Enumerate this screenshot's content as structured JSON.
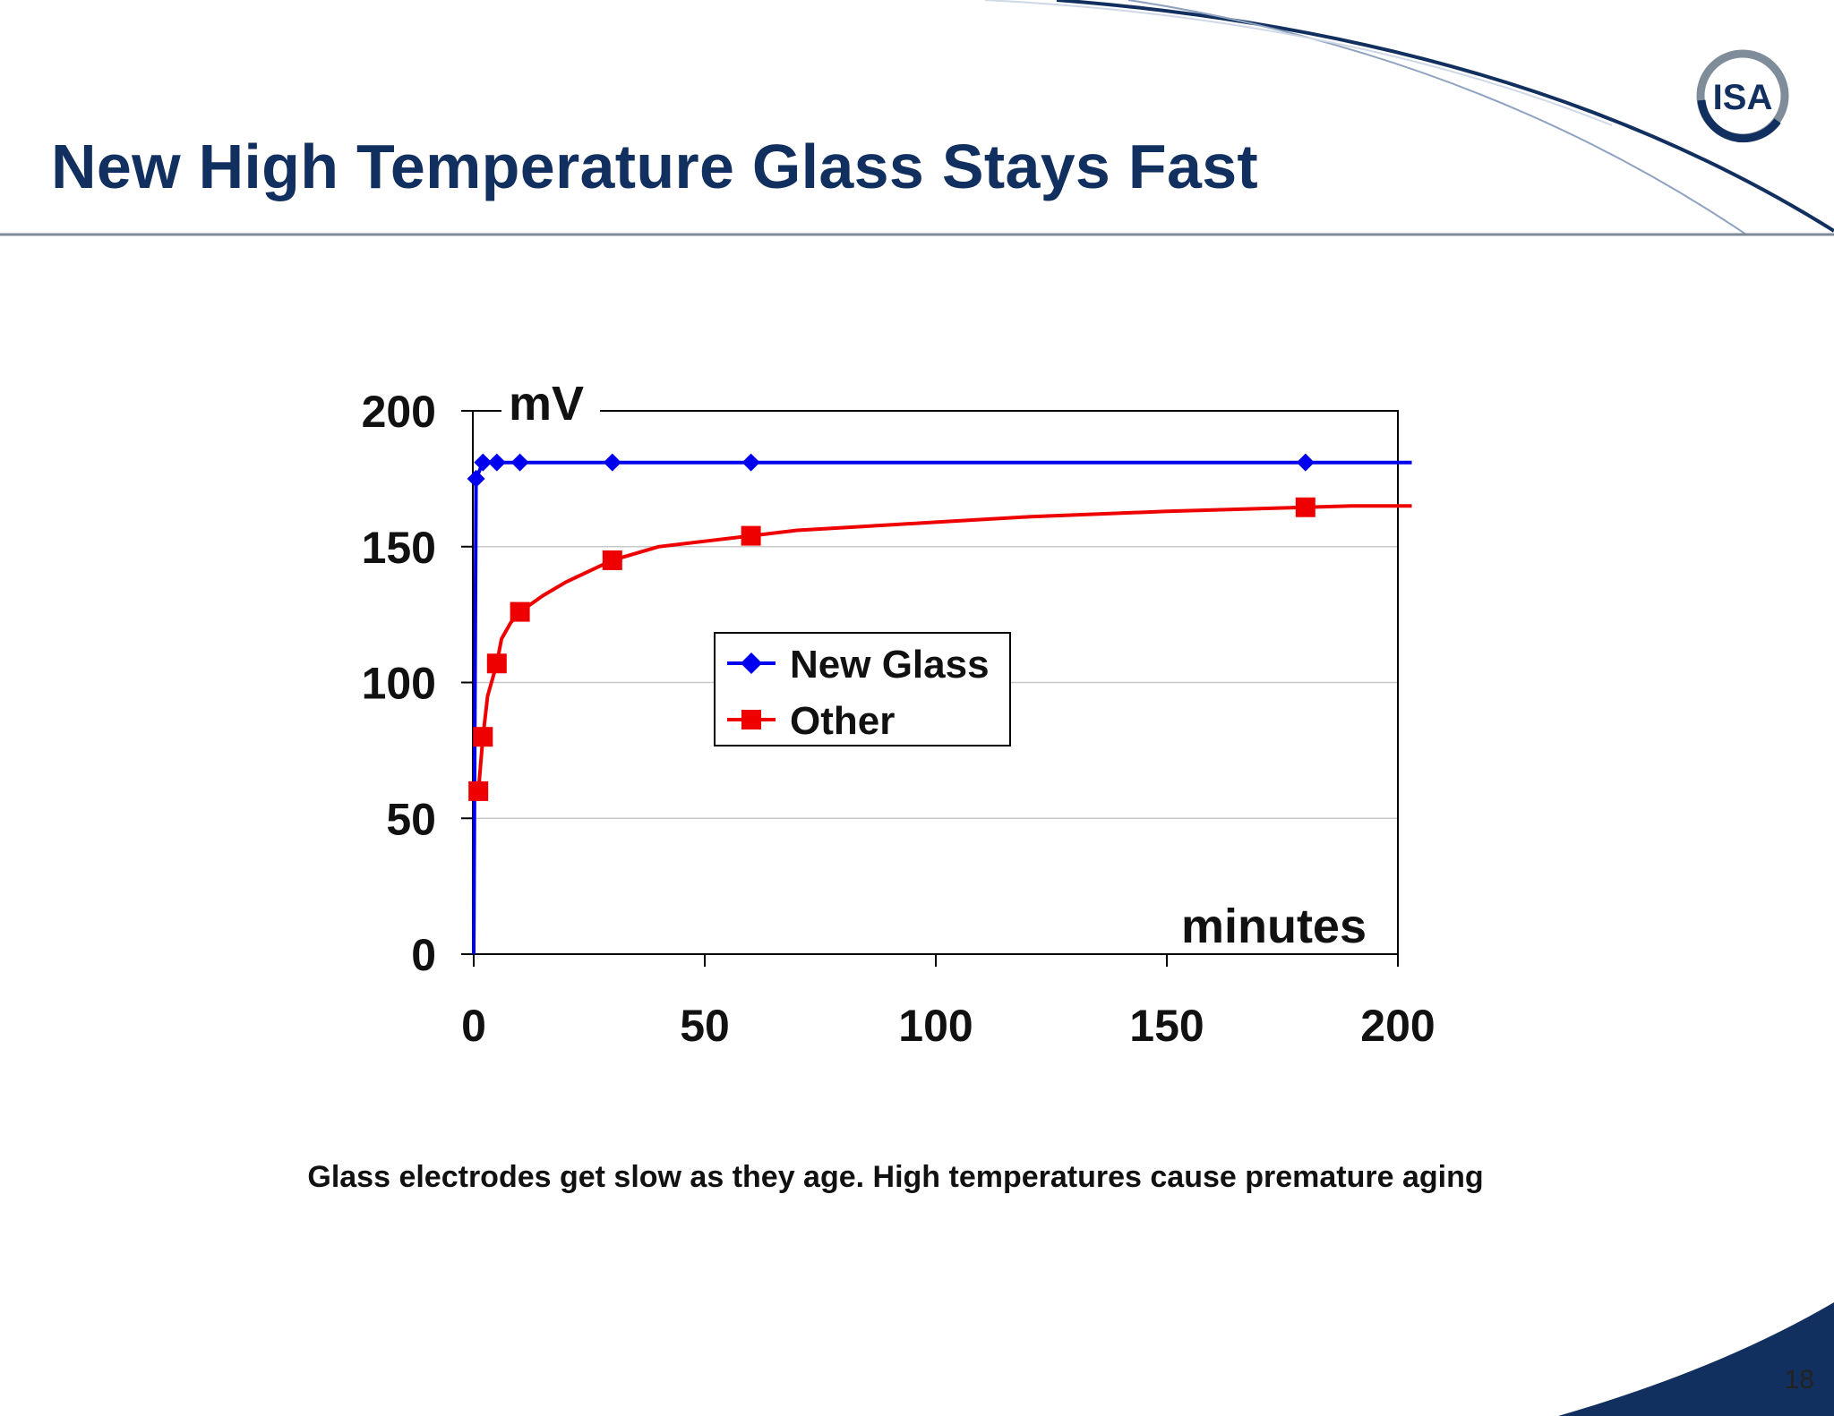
{
  "slide": {
    "title": "New High Temperature Glass Stays Fast",
    "caption": "Glass electrodes get slow as they age.  High temperatures cause premature aging",
    "page_number": "18",
    "logo_text": "ISA"
  },
  "colors": {
    "title": "#12305f",
    "new_glass": "#0000ee",
    "other": "#ee0000",
    "gridline": "#c8c8c8",
    "accent": "#12305f"
  },
  "chart_data": {
    "type": "line",
    "ylabel": "mV",
    "xlabel": "minutes",
    "xlim": [
      0,
      200
    ],
    "ylim": [
      0,
      200
    ],
    "x_ticks": [
      0,
      50,
      100,
      150,
      200
    ],
    "y_ticks": [
      0,
      50,
      100,
      150,
      200
    ],
    "x_tick_labels": [
      "0",
      "50",
      "100",
      "150",
      "200"
    ],
    "y_tick_labels": [
      "0",
      "50",
      "100",
      "150",
      "200"
    ],
    "grid": true,
    "legend_position": "center",
    "series": [
      {
        "name": "New Glass",
        "color": "#0000ee",
        "marker": "diamond",
        "x": [
          0,
          0.5,
          2,
          5,
          10,
          30,
          60,
          180
        ],
        "y": [
          0,
          175,
          181,
          181,
          181,
          181,
          181,
          181
        ],
        "marker_x": [
          0.5,
          2,
          5,
          10,
          30,
          60,
          180
        ],
        "marker_y": [
          175,
          181,
          181,
          181,
          181,
          181,
          181
        ],
        "line_end_x": 203,
        "line_end_y": 181
      },
      {
        "name": "Other",
        "color": "#ee0000",
        "marker": "square",
        "x": [
          1,
          2,
          3,
          5,
          6,
          8,
          10,
          15,
          20,
          30,
          40,
          50,
          60,
          70,
          80,
          100,
          120,
          150,
          180,
          190
        ],
        "y": [
          60,
          80,
          95,
          107,
          116,
          122,
          126,
          132,
          137,
          145,
          150,
          152,
          154,
          156,
          157,
          159,
          161,
          163,
          164.5,
          165
        ],
        "marker_x": [
          1,
          2,
          5,
          10,
          30,
          60,
          180
        ],
        "marker_y": [
          60,
          80,
          107,
          126,
          145,
          154,
          164.5
        ],
        "line_end_x": 203,
        "line_end_y": 165
      }
    ]
  }
}
